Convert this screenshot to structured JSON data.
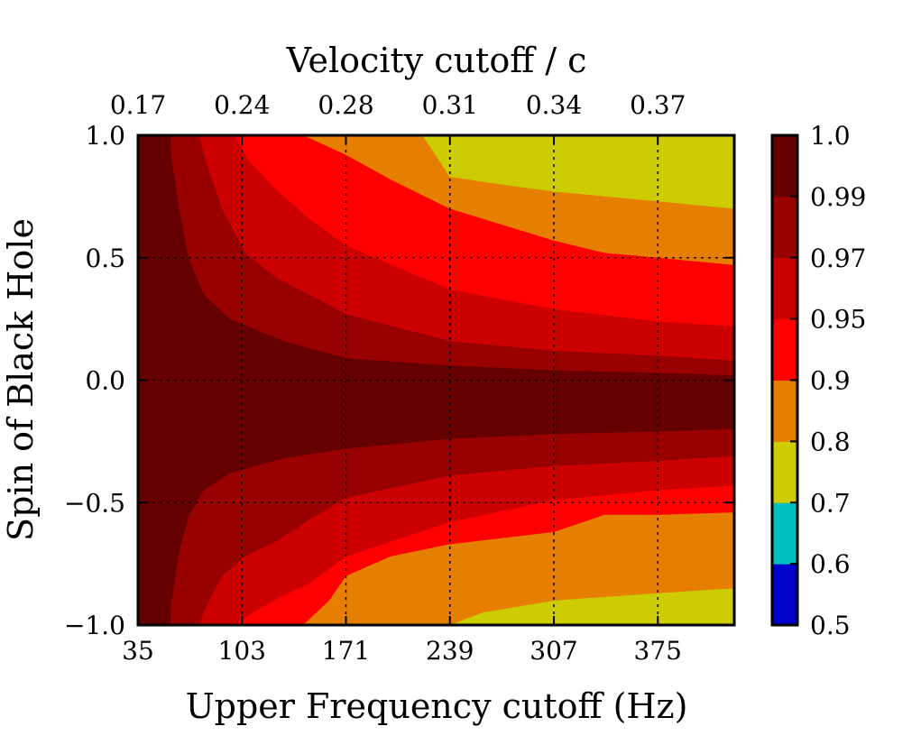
{
  "chart_data": {
    "type": "heatmap",
    "subtype": "filled-contour",
    "xlabel": "Upper Frequency cutoff (Hz)",
    "ylabel": "Spin of Black Hole",
    "top_xlabel": "Velocity cutoff / c",
    "xlim": [
      35,
      425
    ],
    "ylim": [
      -1.0,
      1.0
    ],
    "x_ticks": [
      35,
      103,
      171,
      239,
      307,
      375
    ],
    "x_tick_labels": [
      "35",
      "103",
      "171",
      "239",
      "307",
      "375"
    ],
    "top_x_tick_labels": [
      "0.17",
      "0.24",
      "0.28",
      "0.31",
      "0.34",
      "0.37"
    ],
    "y_ticks": [
      1.0,
      0.5,
      0.0,
      -0.5,
      -1.0
    ],
    "y_tick_labels": [
      "1.0",
      "0.5",
      "0.0",
      "−0.5",
      "−1.0"
    ],
    "grid": true,
    "colorbar": {
      "levels": [
        0.5,
        0.6,
        0.7,
        0.8,
        0.9,
        0.95,
        0.97,
        0.99,
        1.0
      ],
      "tick_labels": [
        "0.5",
        "0.6",
        "0.7",
        "0.8",
        "0.9",
        "0.95",
        "0.97",
        "0.99",
        "1.0"
      ],
      "colors": [
        "#0000cc",
        "#00c0c0",
        "#cccc00",
        "#e67e00",
        "#ff0000",
        "#cc0000",
        "#990000",
        "#660000"
      ]
    },
    "contour_boundaries": [
      {
        "level": 0.99,
        "side": "upper",
        "points": [
          [
            56,
            1.0
          ],
          [
            57,
            0.9
          ],
          [
            62,
            0.7
          ],
          [
            68,
            0.5
          ],
          [
            78,
            0.35
          ],
          [
            95,
            0.25
          ],
          [
            130,
            0.16
          ],
          [
            171,
            0.09
          ],
          [
            239,
            0.06
          ],
          [
            307,
            0.04
          ],
          [
            375,
            0.03
          ],
          [
            425,
            0.02
          ]
        ]
      },
      {
        "level": 0.99,
        "side": "lower",
        "points": [
          [
            56,
            -1.0
          ],
          [
            57,
            -0.9
          ],
          [
            62,
            -0.7
          ],
          [
            68,
            -0.56
          ],
          [
            78,
            -0.45
          ],
          [
            95,
            -0.38
          ],
          [
            130,
            -0.32
          ],
          [
            171,
            -0.28
          ],
          [
            239,
            -0.24
          ],
          [
            307,
            -0.22
          ],
          [
            375,
            -0.21
          ],
          [
            425,
            -0.2
          ]
        ]
      },
      {
        "level": 0.97,
        "side": "upper",
        "points": [
          [
            75,
            1.0
          ],
          [
            79,
            0.9
          ],
          [
            90,
            0.7
          ],
          [
            105,
            0.52
          ],
          [
            125,
            0.42
          ],
          [
            147,
            0.35
          ],
          [
            171,
            0.27
          ],
          [
            239,
            0.16
          ],
          [
            307,
            0.12
          ],
          [
            375,
            0.1
          ],
          [
            425,
            0.08
          ]
        ]
      },
      {
        "level": 0.97,
        "side": "lower",
        "points": [
          [
            75,
            -1.0
          ],
          [
            79,
            -0.93
          ],
          [
            90,
            -0.8
          ],
          [
            105,
            -0.72
          ],
          [
            125,
            -0.66
          ],
          [
            147,
            -0.57
          ],
          [
            171,
            -0.48
          ],
          [
            239,
            -0.39
          ],
          [
            307,
            -0.35
          ],
          [
            375,
            -0.33
          ],
          [
            425,
            -0.31
          ]
        ]
      },
      {
        "level": 0.95,
        "side": "upper",
        "points": [
          [
            98,
            1.0
          ],
          [
            107,
            0.9
          ],
          [
            125,
            0.78
          ],
          [
            147,
            0.66
          ],
          [
            171,
            0.55
          ],
          [
            239,
            0.37
          ],
          [
            307,
            0.29
          ],
          [
            375,
            0.24
          ],
          [
            425,
            0.22
          ]
        ]
      },
      {
        "level": 0.95,
        "side": "lower",
        "points": [
          [
            98,
            -1.0
          ],
          [
            110,
            -0.95
          ],
          [
            130,
            -0.88
          ],
          [
            147,
            -0.83
          ],
          [
            171,
            -0.72
          ],
          [
            239,
            -0.58
          ],
          [
            307,
            -0.49
          ],
          [
            375,
            -0.45
          ],
          [
            425,
            -0.43
          ]
        ]
      },
      {
        "level": 0.9,
        "side": "upper",
        "points": [
          [
            143,
            1.0
          ],
          [
            171,
            0.92
          ],
          [
            200,
            0.82
          ],
          [
            239,
            0.7
          ],
          [
            307,
            0.57
          ],
          [
            340,
            0.52
          ],
          [
            375,
            0.5
          ],
          [
            425,
            0.47
          ]
        ]
      },
      {
        "level": 0.9,
        "side": "lower",
        "points": [
          [
            143,
            -1.0
          ],
          [
            160,
            -0.9
          ],
          [
            171,
            -0.8
          ],
          [
            200,
            -0.72
          ],
          [
            239,
            -0.67
          ],
          [
            307,
            -0.62
          ],
          [
            340,
            -0.55
          ],
          [
            375,
            -0.55
          ],
          [
            425,
            -0.54
          ]
        ]
      },
      {
        "level": 0.8,
        "side": "upper",
        "points": [
          [
            221,
            1.0
          ],
          [
            239,
            0.83
          ],
          [
            271,
            0.8
          ],
          [
            307,
            0.77
          ],
          [
            375,
            0.73
          ],
          [
            425,
            0.7
          ]
        ]
      },
      {
        "level": 0.8,
        "side": "lower",
        "points": [
          [
            239,
            -1.0
          ],
          [
            260,
            -0.95
          ],
          [
            307,
            -0.9
          ],
          [
            375,
            -0.87
          ],
          [
            425,
            -0.85
          ]
        ]
      }
    ]
  }
}
